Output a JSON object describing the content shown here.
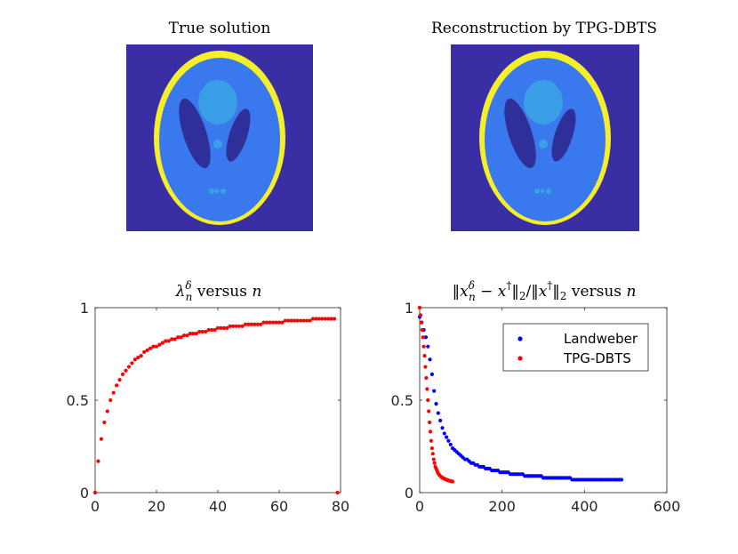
{
  "colors": {
    "background": "#3a2ea4",
    "skull_ring": "#f5ef2a",
    "brain": "#3a78ee",
    "ventricle": "#2f2f9a",
    "upper_blob": "#3a9ee6",
    "spots": "#3aa0e8",
    "landweber": "#0000ff",
    "tpg": "#ff0000",
    "axis": "#262626"
  },
  "images": [
    {
      "title": "True solution",
      "legend_symbol": "phantom-image"
    },
    {
      "title": "Reconstruction by TPG-DBTS",
      "legend_symbol": "phantom-image"
    }
  ],
  "chart_data": [
    {
      "type": "scatter",
      "title_parts": {
        "lambda": "λ",
        "sup": "δ",
        "sub": "n",
        "rest": " versus ",
        "var": "n"
      },
      "title": "λnδ versus n",
      "xlim": [
        0,
        80
      ],
      "ylim": [
        0,
        1
      ],
      "xticks": [
        0,
        20,
        40,
        60,
        80
      ],
      "yticks": [
        0,
        0.5,
        1
      ],
      "xtick_labels": [
        "0",
        "20",
        "40",
        "60",
        "80"
      ],
      "ytick_labels": [
        "0",
        "0.5",
        "1"
      ],
      "series": [
        {
          "name": "lambda",
          "color_key": "tpg",
          "x": [
            0,
            1,
            2,
            3,
            4,
            5,
            6,
            7,
            8,
            9,
            10,
            11,
            12,
            13,
            14,
            15,
            16,
            17,
            18,
            19,
            20,
            21,
            22,
            23,
            24,
            25,
            26,
            27,
            28,
            29,
            30,
            31,
            32,
            33,
            34,
            35,
            36,
            37,
            38,
            39,
            40,
            41,
            42,
            43,
            44,
            45,
            46,
            47,
            48,
            49,
            50,
            51,
            52,
            53,
            54,
            55,
            56,
            57,
            58,
            59,
            60,
            61,
            62,
            63,
            64,
            65,
            66,
            67,
            68,
            69,
            70,
            71,
            72,
            73,
            74,
            75,
            76,
            77,
            78,
            79
          ],
          "y": [
            0,
            0.17,
            0.29,
            0.38,
            0.44,
            0.5,
            0.54,
            0.58,
            0.61,
            0.64,
            0.66,
            0.68,
            0.7,
            0.72,
            0.73,
            0.74,
            0.76,
            0.77,
            0.78,
            0.79,
            0.79,
            0.8,
            0.81,
            0.82,
            0.82,
            0.83,
            0.83,
            0.84,
            0.84,
            0.85,
            0.85,
            0.86,
            0.86,
            0.86,
            0.87,
            0.87,
            0.87,
            0.88,
            0.88,
            0.88,
            0.89,
            0.89,
            0.89,
            0.89,
            0.9,
            0.9,
            0.9,
            0.9,
            0.9,
            0.91,
            0.91,
            0.91,
            0.91,
            0.91,
            0.91,
            0.92,
            0.92,
            0.92,
            0.92,
            0.92,
            0.92,
            0.92,
            0.93,
            0.93,
            0.93,
            0.93,
            0.93,
            0.93,
            0.93,
            0.93,
            0.93,
            0.94,
            0.94,
            0.94,
            0.94,
            0.94,
            0.94,
            0.94,
            0.94,
            0
          ]
        }
      ]
    },
    {
      "type": "scatter",
      "title": "‖xnδ − x†‖2/‖x†‖2 versus n",
      "title_parts": {
        "norm_open": "‖",
        "x": "x",
        "sub_n": "n",
        "sup_delta": "δ",
        "minus": " − ",
        "x2": "x",
        "sup_dagger": "†",
        "norm_close": "‖",
        "sub_2": "2",
        "slash": "/",
        "x3": "x",
        "rest": " versus ",
        "var": "n"
      },
      "xlim": [
        0,
        600
      ],
      "ylim": [
        0,
        1
      ],
      "xticks": [
        0,
        200,
        400,
        600
      ],
      "yticks": [
        0,
        0.5,
        1
      ],
      "xtick_labels": [
        "0",
        "200",
        "400",
        "600"
      ],
      "ytick_labels": [
        "0",
        "0.5",
        "1"
      ],
      "legend": {
        "position": "top-right",
        "entries": [
          "Landweber",
          "TPG-DBTS"
        ]
      },
      "series": [
        {
          "name": "Landweber",
          "color_key": "landweber",
          "x": [
            0,
            5,
            10,
            15,
            20,
            25,
            30,
            35,
            40,
            45,
            50,
            55,
            60,
            65,
            70,
            75,
            80,
            85,
            90,
            95,
            100,
            105,
            110,
            115,
            120,
            125,
            130,
            135,
            140,
            145,
            150,
            155,
            160,
            165,
            170,
            175,
            180,
            185,
            190,
            195,
            200,
            205,
            210,
            215,
            220,
            225,
            230,
            235,
            240,
            245,
            250,
            255,
            260,
            265,
            270,
            275,
            280,
            285,
            290,
            295,
            300,
            305,
            310,
            315,
            320,
            325,
            330,
            335,
            340,
            345,
            350,
            355,
            360,
            365,
            370,
            375,
            380,
            385,
            390,
            395,
            400,
            405,
            410,
            415,
            420,
            425,
            430,
            435,
            440,
            445,
            450,
            455,
            460,
            465,
            470,
            475,
            480,
            485,
            490
          ],
          "y": [
            0.95,
            0.92,
            0.88,
            0.84,
            0.79,
            0.72,
            0.64,
            0.55,
            0.48,
            0.43,
            0.39,
            0.35,
            0.32,
            0.3,
            0.28,
            0.26,
            0.24,
            0.23,
            0.22,
            0.21,
            0.2,
            0.19,
            0.18,
            0.18,
            0.17,
            0.16,
            0.16,
            0.15,
            0.15,
            0.14,
            0.14,
            0.14,
            0.13,
            0.13,
            0.13,
            0.12,
            0.12,
            0.12,
            0.12,
            0.11,
            0.11,
            0.11,
            0.11,
            0.11,
            0.1,
            0.1,
            0.1,
            0.1,
            0.1,
            0.1,
            0.1,
            0.09,
            0.09,
            0.09,
            0.09,
            0.09,
            0.09,
            0.09,
            0.09,
            0.09,
            0.08,
            0.08,
            0.08,
            0.08,
            0.08,
            0.08,
            0.08,
            0.08,
            0.08,
            0.08,
            0.08,
            0.08,
            0.08,
            0.08,
            0.07,
            0.07,
            0.07,
            0.07,
            0.07,
            0.07,
            0.07,
            0.07,
            0.07,
            0.07,
            0.07,
            0.07,
            0.07,
            0.07,
            0.07,
            0.07,
            0.07,
            0.07,
            0.07,
            0.07,
            0.07,
            0.07,
            0.07,
            0.07,
            0.07
          ]
        },
        {
          "name": "TPG-DBTS",
          "color_key": "tpg",
          "x": [
            0,
            2,
            4,
            6,
            8,
            10,
            12,
            14,
            16,
            18,
            20,
            22,
            24,
            26,
            28,
            30,
            32,
            34,
            36,
            38,
            40,
            42,
            44,
            46,
            48,
            50,
            52,
            54,
            56,
            58,
            60,
            62,
            64,
            66,
            68,
            70,
            72,
            74,
            76,
            78,
            80
          ],
          "y": [
            1,
            0.96,
            0.92,
            0.88,
            0.84,
            0.79,
            0.74,
            0.68,
            0.62,
            0.56,
            0.5,
            0.44,
            0.38,
            0.33,
            0.28,
            0.24,
            0.21,
            0.18,
            0.16,
            0.14,
            0.13,
            0.12,
            0.11,
            0.1,
            0.095,
            0.09,
            0.085,
            0.082,
            0.08,
            0.078,
            0.075,
            0.073,
            0.071,
            0.069,
            0.068,
            0.066,
            0.065,
            0.063,
            0.062,
            0.061,
            0.06
          ]
        }
      ]
    }
  ]
}
